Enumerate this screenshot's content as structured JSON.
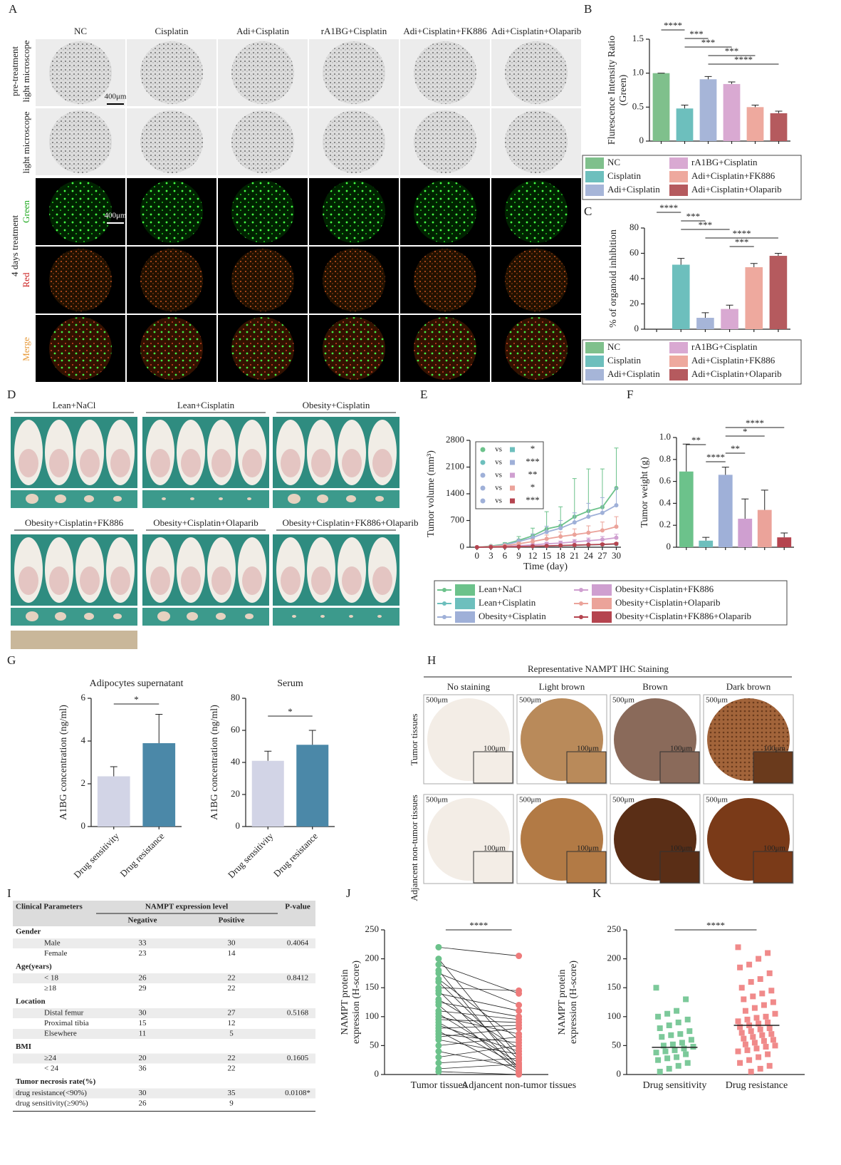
{
  "panel_labels": [
    "A",
    "B",
    "C",
    "D",
    "E",
    "F",
    "G",
    "H",
    "I",
    "J",
    "K"
  ],
  "panel_a": {
    "columns": [
      "NC",
      "Cisplatin",
      "Adi+Cisplatin",
      "rA1BG+Cisplatin",
      "Adi+Cisplatin+FK886",
      "Adi+Cisplatin+Olaparib"
    ],
    "row_labels": [
      "pre-treatment",
      "light microscope",
      "light microscope",
      "Green",
      "Red",
      "Merge"
    ],
    "group_label": "4 days treatment",
    "scale_bar": "400μm"
  },
  "panel_d": {
    "groups": [
      "Lean+NaCl",
      "Lean+Cisplatin",
      "Obesity+Cisplatin",
      "Obesity+Cisplatin+FK886",
      "Obesity+Cisplatin+Olaparib",
      "Obesity+Cisplatin+FK886+Olaparib"
    ]
  },
  "panel_h": {
    "title": "Representative NAMPT IHC Staining",
    "columns": [
      "No staining",
      "Light brown",
      "Brown",
      "Dark brown"
    ],
    "rows": [
      "Tumor tissues",
      "Adjancent non-tumor tissues"
    ],
    "scale_large": "500μm",
    "scale_small": "100μm"
  },
  "table_i": {
    "header": [
      "Clinical Parameters",
      "NAMPT expression level",
      "P-value"
    ],
    "subheader": [
      "Negative",
      "Positive"
    ],
    "sections": [
      {
        "title": "Gender",
        "p_value": "0.4064",
        "rows": [
          [
            "Male",
            33,
            30
          ],
          [
            "Female",
            23,
            14
          ]
        ]
      },
      {
        "title": "Age(years)",
        "p_value": "0.8412",
        "rows": [
          [
            "< 18",
            26,
            22
          ],
          [
            "≥18",
            29,
            22
          ]
        ]
      },
      {
        "title": "Location",
        "p_value": "0.5168",
        "rows": [
          [
            "Distal femur",
            30,
            27
          ],
          [
            "Proximal tibia",
            15,
            12
          ],
          [
            "Elsewhere",
            11,
            5
          ]
        ]
      },
      {
        "title": "BMI",
        "p_value": "0.1605",
        "rows": [
          [
            "≥24",
            20,
            22
          ],
          [
            "< 24",
            36,
            22
          ]
        ]
      },
      {
        "title": "Tumor necrosis rate(%)",
        "p_value": "0.0108*",
        "rows": [
          [
            "drug resistance(<90%)",
            30,
            35
          ],
          [
            "drug sensitivity(≥90%)",
            26,
            9
          ]
        ]
      }
    ]
  },
  "chart_data": [
    {
      "type": "bar",
      "ylabel": [
        "Flurescence Intensity Ratio",
        "(Green)"
      ],
      "legend": [
        "NC",
        "Cisplatin",
        "Adi+Cisplatin",
        "rA1BG+Cisplatin",
        "Adi+Cisplatin+FK886",
        "Adi+Cisplatin+Olaparib"
      ],
      "values": [
        1.0,
        0.48,
        0.91,
        0.84,
        0.5,
        0.41
      ],
      "errors": [
        0,
        0.05,
        0.04,
        0.03,
        0.03,
        0.03
      ],
      "colors": [
        "#7fc08c",
        "#6dbfbd",
        "#a6b5d8",
        "#d9a9d2",
        "#eea99e",
        "#b55a5e"
      ],
      "ylim": [
        0,
        1.5
      ],
      "yticks": [
        0,
        0.5,
        {
          "value": 1,
          "label": "1.0"
        },
        1.5
      ],
      "brackets": [
        {
          "pair": [
            0,
            1
          ],
          "label": "****"
        },
        {
          "pair": [
            1,
            2
          ],
          "label": "***"
        },
        {
          "pair": [
            1,
            3
          ],
          "label": "***"
        },
        {
          "pair": [
            2,
            4
          ],
          "label": "***"
        },
        {
          "pair": [
            2,
            5
          ],
          "label": "****"
        }
      ]
    },
    {
      "type": "bar",
      "ylabel": [
        "% of organoid inhibition"
      ],
      "legend": [
        "NC",
        "Cisplatin",
        "Adi+Cisplatin",
        "rA1BG+Cisplatin",
        "Adi+Cisplatin+FK886",
        "Adi+Cisplatin+Olaparib"
      ],
      "values": [
        0,
        51,
        9,
        16,
        49,
        58
      ],
      "errors": [
        0,
        5,
        4,
        3,
        3,
        2
      ],
      "colors": [
        "#7fc08c",
        "#6dbfbd",
        "#a6b5d8",
        "#d9a9d2",
        "#eea99e",
        "#b55a5e"
      ],
      "ylim": [
        0,
        80
      ],
      "yticks": [
        0,
        20,
        40,
        60,
        80
      ],
      "brackets": [
        {
          "pair": [
            0,
            1
          ],
          "label": "****"
        },
        {
          "pair": [
            1,
            2
          ],
          "label": "***"
        },
        {
          "pair": [
            1,
            3
          ],
          "label": "***"
        },
        {
          "pair": [
            2,
            5
          ],
          "label": "****"
        },
        {
          "pair": [
            3,
            4
          ],
          "label": "***"
        }
      ]
    },
    {
      "type": "line",
      "xlabel": "Time (day)",
      "ylabel": [
        "Tumor volume (mm³)"
      ],
      "x": [
        0,
        3,
        6,
        9,
        12,
        15,
        18,
        21,
        24,
        27,
        30
      ],
      "xlim": [
        -1.5,
        31
      ],
      "xticks": [
        0,
        3,
        6,
        9,
        12,
        15,
        18,
        21,
        24,
        27,
        30
      ],
      "ylim": [
        0,
        2800
      ],
      "yticks": [
        0,
        700,
        1400,
        2100,
        2800
      ],
      "series": [
        {
          "name": "Lean+NaCl",
          "color": "#6cc28b",
          "values": [
            0,
            30,
            80,
            180,
            300,
            480,
            560,
            800,
            950,
            1050,
            1550
          ],
          "errors": [
            0,
            20,
            40,
            100,
            200,
            450,
            500,
            1000,
            1100,
            1000,
            1050
          ]
        },
        {
          "name": "Lean+Cisplatin",
          "color": "#6dbfbd",
          "values": [
            0,
            5,
            10,
            15,
            20,
            30,
            40,
            50,
            60,
            70,
            80
          ],
          "errors": [
            0,
            3,
            5,
            8,
            10,
            12,
            15,
            20,
            25,
            30,
            35
          ]
        },
        {
          "name": "Obesity+Cisplatin",
          "color": "#9fb0d8",
          "values": [
            0,
            20,
            60,
            150,
            250,
            400,
            500,
            650,
            800,
            900,
            1100
          ],
          "errors": [
            0,
            15,
            30,
            60,
            100,
            150,
            200,
            250,
            350,
            400,
            450
          ]
        },
        {
          "name": "Obesity+Cisplatin+FK886",
          "color": "#cf9fd0",
          "values": [
            0,
            10,
            20,
            40,
            60,
            90,
            110,
            140,
            170,
            200,
            250
          ],
          "errors": [
            0,
            5,
            10,
            20,
            30,
            40,
            50,
            60,
            70,
            80,
            90
          ]
        },
        {
          "name": "Obesity+Cisplatin+Olaparib",
          "color": "#eba39a",
          "values": [
            0,
            15,
            40,
            90,
            150,
            220,
            280,
            330,
            380,
            440,
            540
          ],
          "errors": [
            0,
            10,
            20,
            40,
            60,
            100,
            120,
            150,
            180,
            220,
            260
          ]
        },
        {
          "name": "Obesity+Cisplatin+FK886+Olaparib",
          "color": "#b5444f",
          "values": [
            0,
            5,
            10,
            15,
            25,
            35,
            45,
            55,
            65,
            75,
            90
          ],
          "errors": [
            0,
            3,
            5,
            8,
            10,
            12,
            15,
            18,
            20,
            25,
            30
          ]
        }
      ],
      "comparison_word": "vs",
      "comparisons": [
        {
          "pair": [
            0,
            1
          ],
          "label": "*"
        },
        {
          "pair": [
            1,
            2
          ],
          "label": "***"
        },
        {
          "pair": [
            2,
            3
          ],
          "label": "**"
        },
        {
          "pair": [
            2,
            4
          ],
          "label": "*"
        },
        {
          "pair": [
            2,
            5
          ],
          "label": "***"
        }
      ]
    },
    {
      "type": "bar",
      "ylabel": [
        "Tumor weight (g)"
      ],
      "values": [
        0.69,
        0.06,
        0.66,
        0.26,
        0.34,
        0.09
      ],
      "errors": [
        0.25,
        0.03,
        0.07,
        0.18,
        0.18,
        0.04
      ],
      "colors": [
        "#6cc28b",
        "#6dbfbd",
        "#9fb0d8",
        "#cf9fd0",
        "#eba39a",
        "#b5444f"
      ],
      "ylim": [
        0,
        1
      ],
      "yticks": [
        0,
        0.2,
        0.4,
        0.6,
        0.8,
        {
          "value": 1,
          "label": "1.0"
        }
      ],
      "brackets": [
        {
          "pair": [
            2,
            5
          ],
          "label": "****"
        },
        {
          "pair": [
            2,
            4
          ],
          "label": "*"
        },
        {
          "pair": [
            0,
            1
          ],
          "label": "**"
        },
        {
          "pair": [
            2,
            3
          ],
          "label": "**"
        },
        {
          "pair": [
            1,
            2
          ],
          "label": "****"
        }
      ]
    },
    {
      "type": "bar",
      "title": "Adipocytes supernatant",
      "ylabel": [
        "A1BG concentration (ng/ml)"
      ],
      "categories": [
        "Drug sensitivity",
        "Drug resistance"
      ],
      "values": [
        2.35,
        3.9
      ],
      "errors": [
        0.45,
        1.35
      ],
      "colors": [
        "#d2d4e6",
        "#4b88a8"
      ],
      "ylim": [
        0,
        6
      ],
      "yticks": [
        0,
        2,
        4,
        6
      ],
      "brackets": [
        {
          "pair": [
            0,
            1
          ],
          "label": "*"
        }
      ]
    },
    {
      "type": "bar",
      "title": "Serum",
      "ylabel": [
        "A1BG concentration (ng/ml)"
      ],
      "categories": [
        "Drug sensitivity",
        "Drug resistance"
      ],
      "values": [
        41,
        51
      ],
      "errors": [
        6,
        9
      ],
      "colors": [
        "#d2d4e6",
        "#4b88a8"
      ],
      "ylim": [
        0,
        80
      ],
      "yticks": [
        0,
        20,
        40,
        60,
        80
      ],
      "brackets": [
        {
          "pair": [
            0,
            1
          ],
          "label": "*"
        }
      ]
    },
    {
      "type": "paired",
      "ylabel": [
        "NAMPT protein",
        "expression (H-score)"
      ],
      "ylim": [
        0,
        250
      ],
      "yticks": [
        0,
        50,
        100,
        150,
        200,
        250
      ],
      "series": [
        {
          "name": "Tumor tissues",
          "color": "#6cc28b",
          "values": [
            220,
            200,
            190,
            180,
            175,
            165,
            160,
            150,
            145,
            140,
            130,
            125,
            120,
            110,
            105,
            100,
            95,
            90,
            85,
            80,
            75,
            70,
            65,
            60,
            50,
            40,
            30,
            20,
            10,
            5
          ]
        },
        {
          "name": "Adjancent non-tumor tissues",
          "color": "#ee7b7b",
          "values": [
            205,
            30,
            140,
            10,
            120,
            60,
            25,
            145,
            8,
            110,
            45,
            100,
            5,
            95,
            20,
            70,
            90,
            15,
            40,
            85,
            3,
            55,
            80,
            35,
            65,
            12,
            50,
            28,
            18,
            0
          ]
        }
      ],
      "brackets": [
        {
          "pair": [
            0,
            1
          ],
          "label": "****"
        }
      ]
    },
    {
      "type": "strip",
      "ylabel": [
        "NAMPT protein",
        "expression (H-score)"
      ],
      "ylim": [
        0,
        250
      ],
      "yticks": [
        0,
        50,
        100,
        150,
        200,
        250
      ],
      "series": [
        {
          "name": "Drug sensitivity",
          "color": "#7cc99a",
          "center": 47,
          "values": [
            150,
            130,
            110,
            105,
            100,
            95,
            90,
            85,
            80,
            75,
            70,
            68,
            65,
            60,
            55,
            52,
            50,
            48,
            45,
            42,
            40,
            38,
            35,
            30,
            28,
            25,
            20,
            15,
            10,
            5
          ]
        },
        {
          "name": "Drug resistance",
          "color": "#f08a8a",
          "center": 85,
          "values": [
            220,
            210,
            200,
            190,
            185,
            175,
            165,
            160,
            150,
            145,
            140,
            135,
            130,
            125,
            120,
            115,
            110,
            105,
            100,
            98,
            95,
            92,
            90,
            88,
            85,
            82,
            80,
            78,
            75,
            72,
            70,
            68,
            65,
            62,
            60,
            58,
            55,
            52,
            50,
            48,
            45,
            42,
            40,
            35,
            30,
            25,
            20,
            15,
            10,
            5
          ]
        }
      ],
      "brackets": [
        {
          "pair": [
            0,
            1
          ],
          "label": "****"
        }
      ]
    }
  ]
}
